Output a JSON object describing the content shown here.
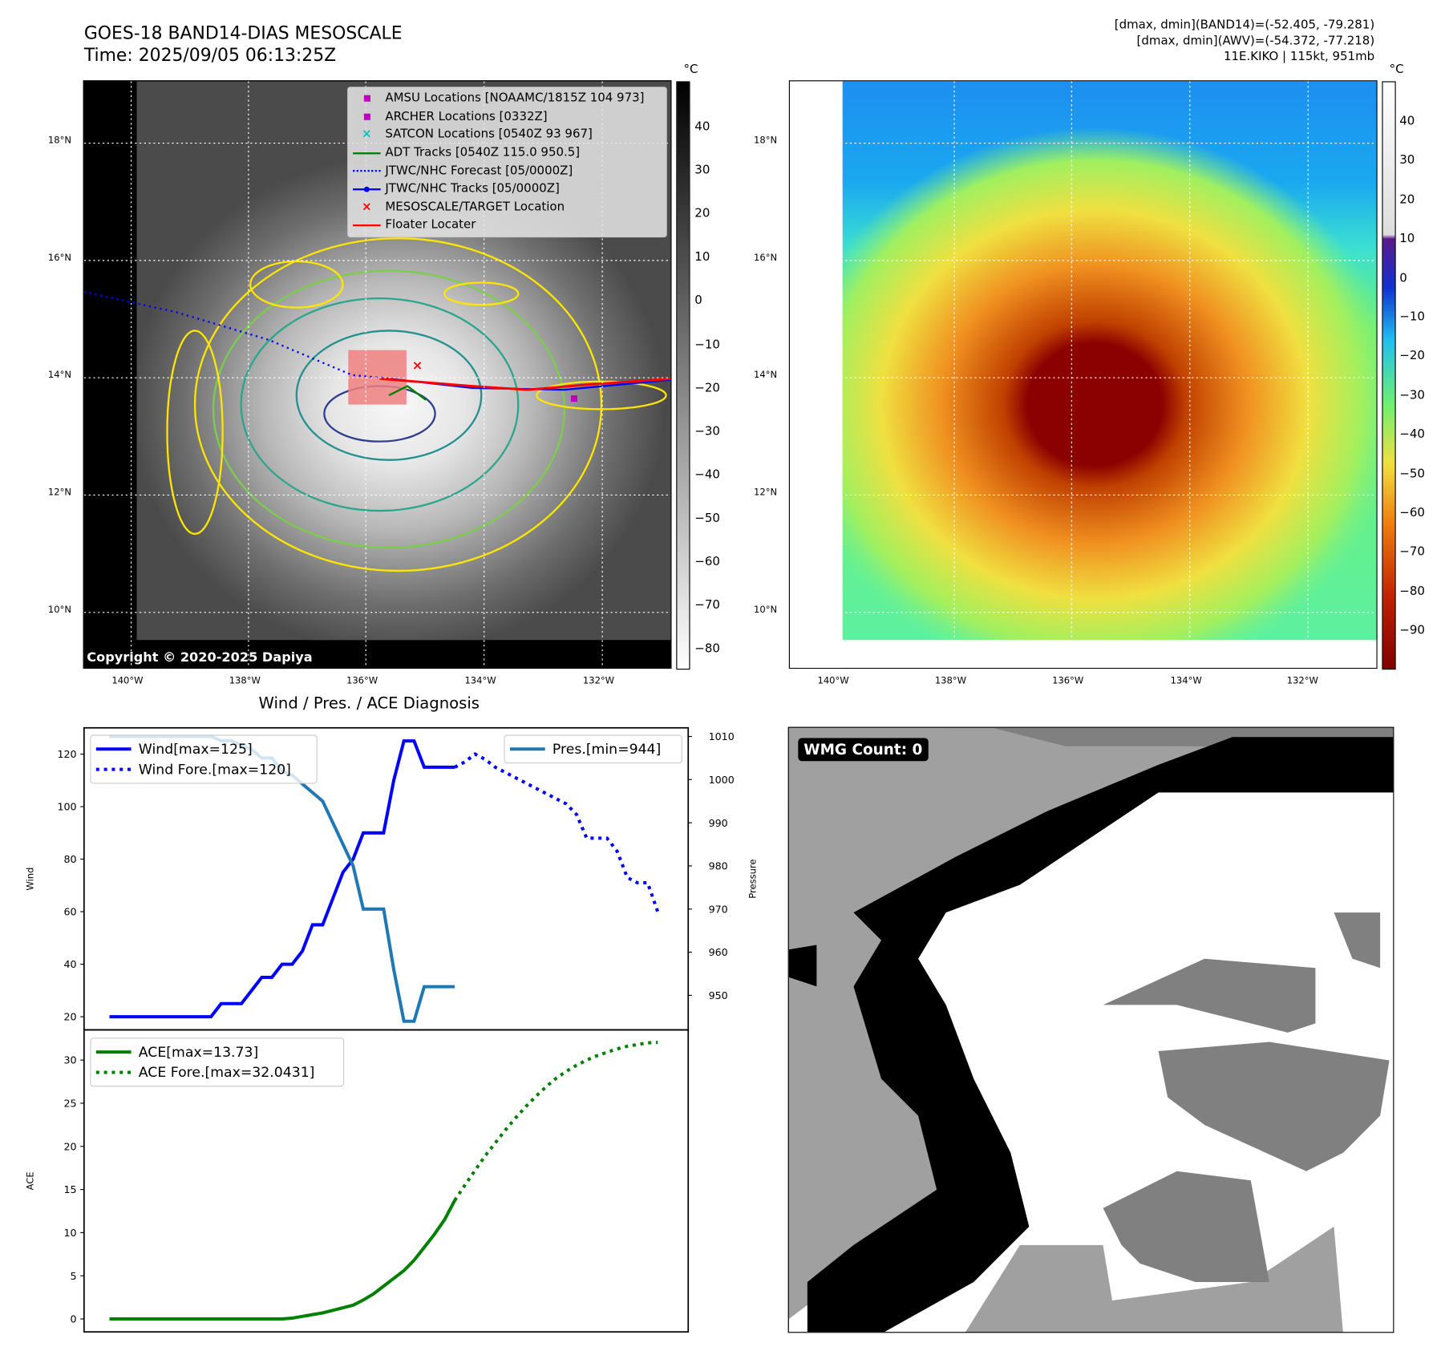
{
  "header": {
    "title_line1": "GOES-18 BAND14-DIAS MESOSCALE",
    "title_line2": "Time: 2025/09/05 06:13:25Z",
    "info_line1": "[dmax, dmin](BAND14)=(-52.405, -79.281)",
    "info_line2": "[dmax, dmin](AWV)=(-54.372, -77.218)",
    "info_line3": "11E.KIKO | 115kt, 951mb"
  },
  "map": {
    "lon_ticks": [
      "140°W",
      "138°W",
      "136°W",
      "134°W",
      "132°W"
    ],
    "lat_ticks": [
      "18°N",
      "16°N",
      "14°N",
      "12°N",
      "10°N"
    ],
    "copyright": "Copyright © 2020-2025 Dapiya",
    "legend": [
      {
        "label": "AMSU Locations [NOAAMC/1815Z 104 973]",
        "symbol": "square",
        "color": "#c000c0"
      },
      {
        "label": "ARCHER Locations [0332Z]",
        "symbol": "square",
        "color": "#c000c0"
      },
      {
        "label": "SATCON Locations [0540Z 93 967]",
        "symbol": "x",
        "color": "#00c0c0"
      },
      {
        "label": "ADT Tracks [0540Z 115.0 950.5]",
        "symbol": "line",
        "color": "#008000"
      },
      {
        "label": "JTWC/NHC Forecast [05/0000Z]",
        "symbol": "dotted",
        "color": "#0000ff"
      },
      {
        "label": "JTWC/NHC Tracks [05/0000Z]",
        "symbol": "line-dot",
        "color": "#0000ff"
      },
      {
        "label": "MESOSCALE/TARGET Location",
        "symbol": "x",
        "color": "#ff0000"
      },
      {
        "label": "Floater Locater",
        "symbol": "line",
        "color": "#ff0000"
      }
    ]
  },
  "colorbar_left": {
    "unit": "°C",
    "ticks": [
      "40",
      "30",
      "20",
      "10",
      "0",
      "−10",
      "−20",
      "−30",
      "−40",
      "−50",
      "−60",
      "−70",
      "−80"
    ]
  },
  "colorbar_right": {
    "unit": "°C",
    "ticks": [
      "40",
      "30",
      "20",
      "10",
      "0",
      "−10",
      "−20",
      "−30",
      "−40",
      "−50",
      "−60",
      "−70",
      "−80",
      "−90"
    ]
  },
  "wmg": {
    "label": "WMG Count: 0"
  },
  "chart_data": [
    {
      "type": "line",
      "title": "Wind / Pres. / ACE Diagnosis",
      "ylabel": "Wind",
      "y2label": "Pressure",
      "ylim": [
        15,
        130
      ],
      "y2lim": [
        942,
        1012
      ],
      "yticks": [
        "120",
        "100",
        "80",
        "60",
        "40",
        "20"
      ],
      "y2ticks": [
        "1010",
        "1000",
        "990",
        "980",
        "970",
        "960",
        "950"
      ],
      "x_range": [
        -2.5,
        57
      ],
      "series": [
        {
          "name": "Wind[max=125]",
          "style": "solid",
          "color": "#0000ff",
          "x_start": 0,
          "values": [
            20,
            20,
            20,
            20,
            20,
            20,
            20,
            20,
            20,
            20,
            20,
            25,
            25,
            25,
            30,
            35,
            35,
            40,
            40,
            45,
            55,
            55,
            65,
            75,
            80,
            90,
            90,
            90,
            110,
            125,
            125,
            115,
            115,
            115,
            115
          ]
        },
        {
          "name": "Wind Fore.[max=120]",
          "style": "dotted",
          "color": "#0000ff",
          "x_start": 34,
          "values": [
            115,
            117,
            120,
            118,
            115,
            113,
            111,
            109,
            107,
            105,
            103,
            101,
            97,
            88,
            88,
            88,
            83,
            73,
            71,
            71,
            60
          ]
        },
        {
          "name": "Pres.[min=944]",
          "style": "solid",
          "color": "#1f77b4",
          "axis": "right",
          "x_start": 0,
          "values": [
            1010,
            1010,
            1010,
            1010,
            1010,
            1010,
            1010,
            1010,
            1010,
            1010,
            1010,
            1009,
            1009,
            1008,
            1007,
            1005,
            1005,
            1002,
            1001,
            999,
            997,
            995,
            990,
            985,
            980,
            970,
            970,
            970,
            956,
            944,
            944,
            952,
            952,
            952,
            952
          ]
        }
      ]
    },
    {
      "type": "line",
      "ylabel": "ACE",
      "ylim": [
        -1.5,
        33.5
      ],
      "yticks": [
        "30",
        "25",
        "20",
        "15",
        "10",
        "5",
        "0"
      ],
      "x_range": [
        -2.5,
        57
      ],
      "series": [
        {
          "name": "ACE[max=13.73]",
          "style": "solid",
          "color": "#008000",
          "x_start": 0,
          "values": [
            0,
            0,
            0,
            0,
            0,
            0,
            0,
            0,
            0,
            0,
            0,
            0,
            0,
            0,
            0,
            0,
            0,
            0,
            0.1,
            0.3,
            0.5,
            0.7,
            1.0,
            1.3,
            1.6,
            2.2,
            2.9,
            3.8,
            4.7,
            5.6,
            6.8,
            8.3,
            9.8,
            11.5,
            13.73
          ]
        },
        {
          "name": "ACE Fore.[max=32.0431]",
          "style": "dotted",
          "color": "#008000",
          "x_start": 34,
          "values": [
            13.73,
            15.5,
            17.2,
            18.9,
            20.4,
            21.9,
            23.3,
            24.6,
            25.8,
            26.9,
            27.9,
            28.7,
            29.4,
            30.0,
            30.5,
            30.9,
            31.3,
            31.6,
            31.8,
            32.0,
            32.04
          ]
        }
      ]
    }
  ]
}
